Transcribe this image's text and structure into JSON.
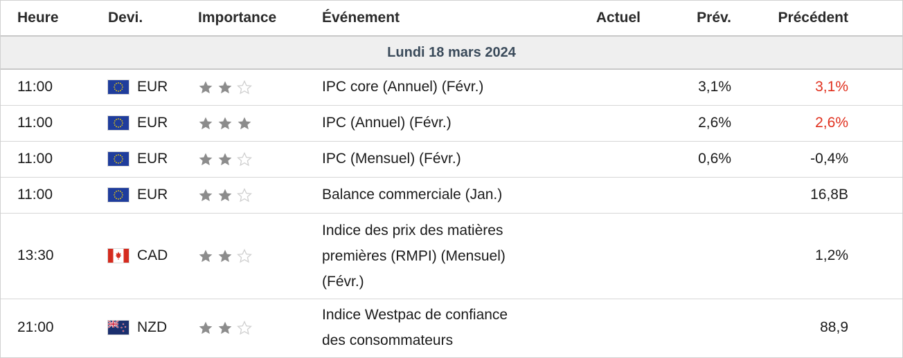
{
  "columns": {
    "time": "Heure",
    "currency": "Devi.",
    "importance": "Importance",
    "event": "Événement",
    "actual": "Actuel",
    "forecast": "Prév.",
    "previous": "Précédent"
  },
  "date_label": "Lundi 18 mars 2024",
  "colors": {
    "star_filled": "#8c8c8c",
    "star_empty": "#cfcfcf",
    "revised_red": "#e0301e"
  },
  "events": [
    {
      "time": "11:00",
      "currency": "EUR",
      "flag": "eu-flag-icon",
      "importance": 2,
      "event": "IPC core (Annuel) (Févr.)",
      "actual": "",
      "forecast": "3,1%",
      "previous": "3,1%",
      "previous_revised": true
    },
    {
      "time": "11:00",
      "currency": "EUR",
      "flag": "eu-flag-icon",
      "importance": 3,
      "event": "IPC (Annuel) (Févr.)",
      "actual": "",
      "forecast": "2,6%",
      "previous": "2,6%",
      "previous_revised": true
    },
    {
      "time": "11:00",
      "currency": "EUR",
      "flag": "eu-flag-icon",
      "importance": 2,
      "event": "IPC (Mensuel) (Févr.)",
      "actual": "",
      "forecast": "0,6%",
      "previous": "-0,4%",
      "previous_revised": false
    },
    {
      "time": "11:00",
      "currency": "EUR",
      "flag": "eu-flag-icon",
      "importance": 2,
      "event": "Balance commerciale (Jan.)",
      "actual": "",
      "forecast": "",
      "previous": "16,8B",
      "previous_revised": false
    },
    {
      "time": "13:30",
      "currency": "CAD",
      "flag": "canada-flag-icon",
      "importance": 2,
      "event_lines": [
        "Indice des prix des matières",
        "premières (RMPI) (Mensuel)",
        "(Févr.)"
      ],
      "actual": "",
      "forecast": "",
      "previous": "1,2%",
      "previous_revised": false
    },
    {
      "time": "21:00",
      "currency": "NZD",
      "flag": "new-zealand-flag-icon",
      "importance": 2,
      "event_lines": [
        "Indice Westpac de confiance",
        "des consommateurs"
      ],
      "actual": "",
      "forecast": "",
      "previous": "88,9",
      "previous_revised": false
    }
  ]
}
